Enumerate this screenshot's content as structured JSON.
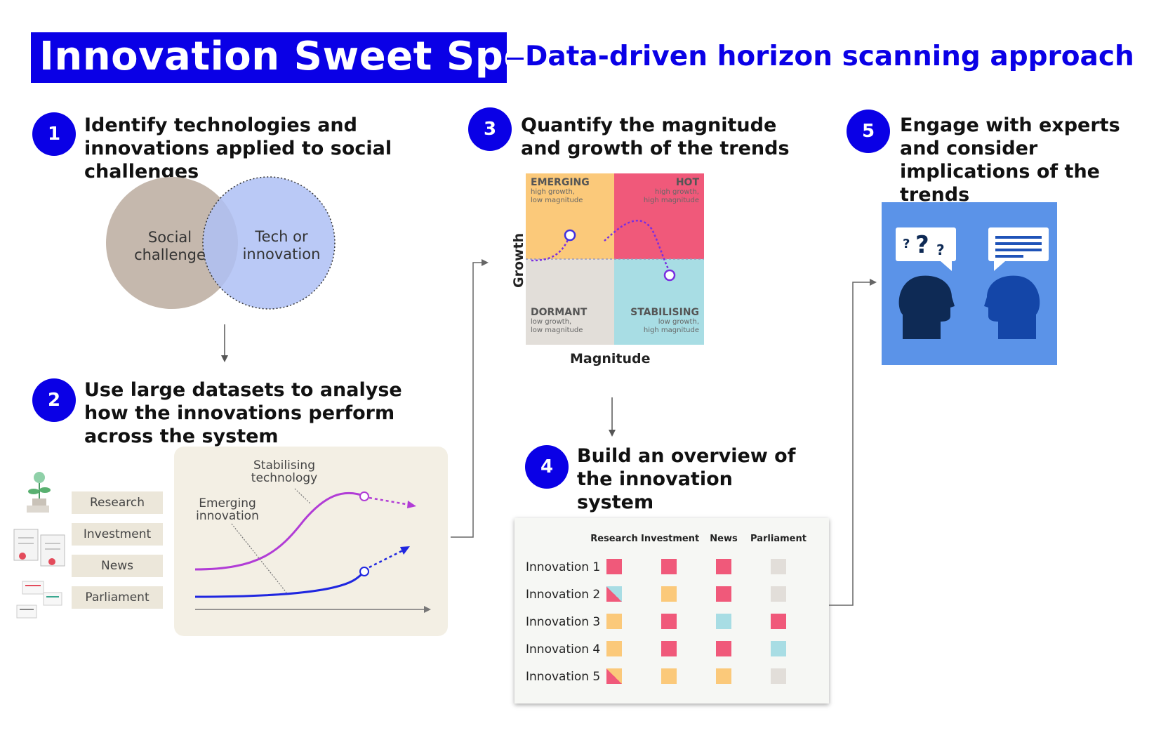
{
  "header": {
    "title": "Innovation Sweet Spots",
    "subtitle": "Data-driven horizon scanning approach"
  },
  "steps": [
    {
      "num": "1",
      "text": "Identify technologies and innovations applied to social challenges"
    },
    {
      "num": "2",
      "text": "Use large datasets to analyse how the innovations perform across the system"
    },
    {
      "num": "3",
      "text": "Quantify the magnitude and growth of the trends"
    },
    {
      "num": "4",
      "text": "Build an overview of the innovation system"
    },
    {
      "num": "5",
      "text": "Engage with experts and consider implications of the trends"
    }
  ],
  "venn": {
    "left_line1": "Social",
    "left_line2": "challenge",
    "right_line1": "Tech or",
    "right_line2": "innovation"
  },
  "sources": [
    "Research",
    "Investment",
    "News",
    "Parliament"
  ],
  "curves": {
    "stabilising_line1": "Stabilising",
    "stabilising_line2": "technology",
    "emerging_line1": "Emerging",
    "emerging_line2": "innovation"
  },
  "quadrants": {
    "emerging": {
      "label": "EMERGING",
      "desc1": "high growth,",
      "desc2": "low magnitude"
    },
    "hot": {
      "label": "HOT",
      "desc1": "high growth,",
      "desc2": "high magnitude"
    },
    "dormant": {
      "label": "DORMANT",
      "desc1": "low growth,",
      "desc2": "low magnitude"
    },
    "stabilising": {
      "label": "STABILISING",
      "desc1": "low growth,",
      "desc2": "high magnitude"
    },
    "y_axis": "Growth",
    "x_axis": "Magnitude"
  },
  "overview_table": {
    "columns": [
      "Research",
      "Investment",
      "News",
      "Parliament"
    ],
    "rows": [
      {
        "label": "Innovation 1",
        "cells": [
          "hot",
          "hot",
          "hot",
          "dormant"
        ]
      },
      {
        "label": "Innovation 2",
        "cells": [
          "hot-stabilising",
          "emerging",
          "hot",
          "dormant"
        ]
      },
      {
        "label": "Innovation 3",
        "cells": [
          "emerging",
          "hot",
          "stabilising",
          "hot"
        ]
      },
      {
        "label": "Innovation 4",
        "cells": [
          "emerging",
          "hot",
          "hot",
          "stabilising"
        ]
      },
      {
        "label": "Innovation 5",
        "cells": [
          "hot-emerging",
          "emerging",
          "emerging",
          "dormant"
        ]
      }
    ]
  },
  "colors": {
    "brand": "#0a00e6",
    "emerging": "#fbc97a",
    "hot": "#f0597a",
    "dormant": "#e2ded9",
    "stabilising": "#a8dde4",
    "venn_left": "#c5b8ad",
    "venn_right": "#aebff5",
    "expert_bg": "#5b93e8"
  }
}
